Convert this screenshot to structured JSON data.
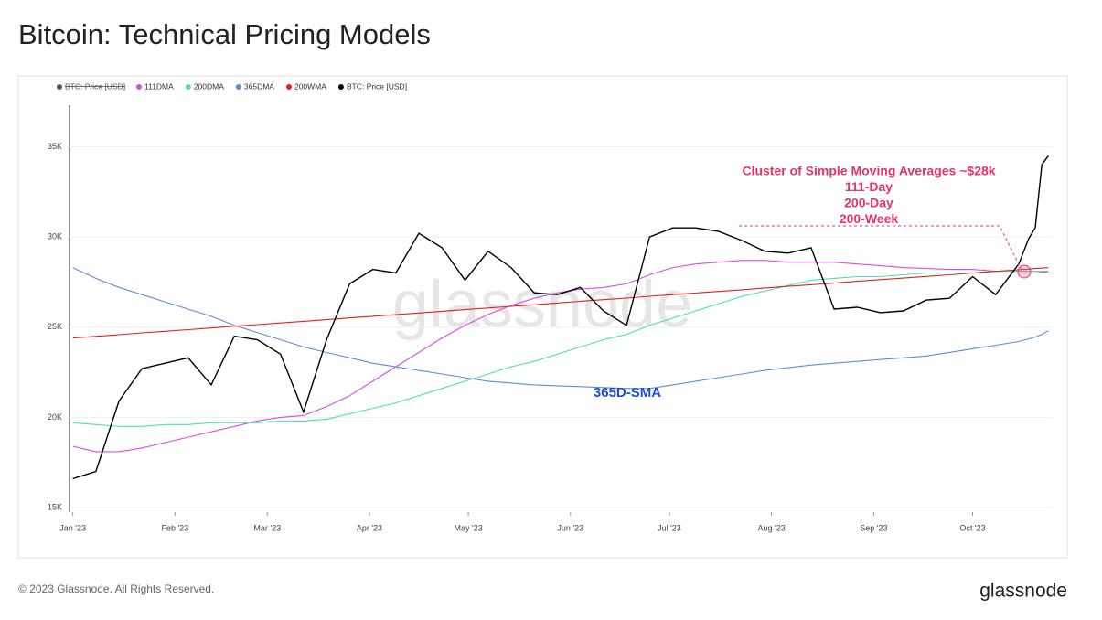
{
  "chart_data": {
    "type": "line",
    "title": "Bitcoin: Technical Pricing Models",
    "hidden_legend": "BTC: Price [USD]",
    "watermark": "glassnode",
    "annotations": [
      "Cluster of Simple Moving Averages ~$28k",
      "111-Day",
      "200-Day",
      "200-Week"
    ],
    "annotation_365": "365D-SMA",
    "footer": "© 2023 Glassnode. All Rights Reserved.",
    "logo": "glassnode",
    "x": [
      0,
      7,
      14,
      21,
      28,
      35,
      42,
      49,
      56,
      63,
      70,
      77,
      84,
      91,
      98,
      105,
      112,
      119,
      126,
      133,
      140,
      147,
      154,
      161,
      168,
      175,
      182,
      189,
      196,
      203,
      210,
      217,
      224,
      231,
      238,
      245,
      252,
      259,
      266,
      273,
      280,
      287,
      290,
      292,
      294,
      296
    ],
    "xlim": [
      -1,
      297
    ],
    "xticks": [
      {
        "value": 0,
        "label": "Jan '23"
      },
      {
        "value": 31,
        "label": "Feb '23"
      },
      {
        "value": 59,
        "label": "Mar '23"
      },
      {
        "value": 90,
        "label": "Apr '23"
      },
      {
        "value": 120,
        "label": "May '23"
      },
      {
        "value": 151,
        "label": "Jun '23"
      },
      {
        "value": 181,
        "label": "Jul '23"
      },
      {
        "value": 212,
        "label": "Aug '23"
      },
      {
        "value": 243,
        "label": "Sep '23"
      },
      {
        "value": 273,
        "label": "Oct '23"
      }
    ],
    "ylim": [
      14750,
      37300
    ],
    "yticks": [
      {
        "value": 15000,
        "label": "15K"
      },
      {
        "value": 20000,
        "label": "20K"
      },
      {
        "value": 25000,
        "label": "25K"
      },
      {
        "value": 30000,
        "label": "30K"
      },
      {
        "value": 35000,
        "label": "35K"
      }
    ],
    "grid": true,
    "series": [
      {
        "name": "111DMA",
        "color": "#d94ce6",
        "values": [
          18400,
          18100,
          18100,
          18300,
          18600,
          18900,
          19200,
          19500,
          19800,
          20000,
          20100,
          20600,
          21200,
          22000,
          22800,
          23600,
          24400,
          25100,
          25700,
          26200,
          26600,
          26900,
          27100,
          27200,
          27400,
          27900,
          28300,
          28500,
          28600,
          28700,
          28700,
          28600,
          28600,
          28600,
          28500,
          28400,
          28300,
          28250,
          28200,
          28200,
          28100,
          28100,
          28100,
          28100,
          28050,
          28050
        ]
      },
      {
        "name": "200DMA",
        "color": "#4fe0b0",
        "values": [
          19700,
          19600,
          19500,
          19500,
          19600,
          19600,
          19700,
          19700,
          19700,
          19800,
          19800,
          19900,
          20200,
          20500,
          20800,
          21200,
          21600,
          22000,
          22400,
          22800,
          23100,
          23500,
          23900,
          24300,
          24600,
          25100,
          25500,
          25900,
          26300,
          26700,
          27000,
          27300,
          27600,
          27700,
          27800,
          27800,
          27900,
          28000,
          28000,
          28000,
          28100,
          28100,
          28100,
          28100,
          28100,
          28100
        ]
      },
      {
        "name": "365DMA",
        "color": "#5b8fd6",
        "values": [
          28300,
          27700,
          27200,
          26800,
          26400,
          26000,
          25600,
          25100,
          24700,
          24300,
          23900,
          23600,
          23300,
          23000,
          22800,
          22600,
          22400,
          22200,
          22000,
          21900,
          21800,
          21750,
          21700,
          21650,
          21600,
          21600,
          21800,
          22000,
          22200,
          22400,
          22600,
          22750,
          22900,
          23000,
          23100,
          23200,
          23300,
          23400,
          23600,
          23800,
          24000,
          24200,
          24350,
          24450,
          24600,
          24800
        ]
      },
      {
        "name": "200WMA",
        "color": "#e02020",
        "values": [
          24400,
          24490,
          24580,
          24680,
          24770,
          24860,
          24950,
          25050,
          25140,
          25230,
          25320,
          25410,
          25510,
          25600,
          25690,
          25780,
          25880,
          25970,
          26060,
          26150,
          26240,
          26340,
          26430,
          26520,
          26610,
          26710,
          26800,
          26890,
          26980,
          27070,
          27170,
          27260,
          27350,
          27440,
          27540,
          27630,
          27720,
          27810,
          27900,
          28000,
          28090,
          28180,
          28220,
          28250,
          28270,
          28300
        ]
      },
      {
        "name": "BTC: Price [USD]",
        "color": "#000000",
        "values": [
          16600,
          17000,
          20900,
          22700,
          23000,
          23300,
          21800,
          24500,
          24300,
          23500,
          20300,
          24300,
          27400,
          28200,
          28000,
          30200,
          29400,
          27600,
          29200,
          28300,
          26900,
          26800,
          27200,
          25900,
          25100,
          30000,
          30500,
          30500,
          30300,
          29800,
          29200,
          29100,
          29400,
          26000,
          26100,
          25800,
          25900,
          26500,
          26600,
          27800,
          26800,
          28500,
          29900,
          30500,
          34000,
          34500
        ]
      }
    ]
  }
}
